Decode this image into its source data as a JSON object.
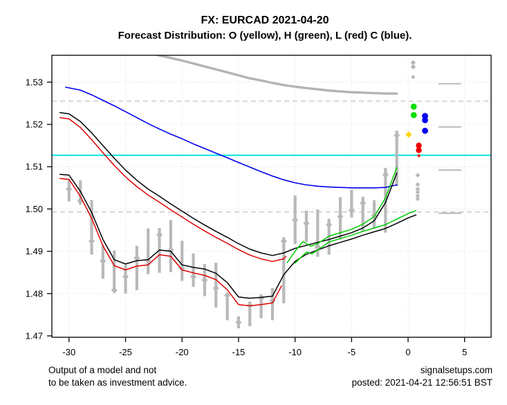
{
  "footer": {
    "disclaimer_line1": "Output of a model and not",
    "disclaimer_line2": "to be taken as investment advice.",
    "site": "signalsetups.com",
    "posted": "posted: 2021-04-21 12:56:51 BST"
  },
  "chart_data": {
    "type": "line",
    "title": "FX: EURCAD 2021-04-20",
    "subtitle": "Forecast Distribution: O (yellow), H (green), L (red) C (blue).",
    "xlabel": "",
    "ylabel": "",
    "xlim": [
      -31.5,
      7.3
    ],
    "ylim": [
      1.4697,
      1.5365
    ],
    "grid": true,
    "legend": {
      "O": "yellow",
      "H": "green",
      "L": "red",
      "C": "blue"
    },
    "x_ticks": [
      -30,
      -25,
      -20,
      -15,
      -10,
      -5,
      0,
      5
    ],
    "x_tick_labels": [
      "-30",
      "-25",
      "-20",
      "-15",
      "-10",
      "-5",
      "0",
      "5"
    ],
    "y_ticks": [
      1.47,
      1.48,
      1.49,
      1.5,
      1.51,
      1.52,
      1.53
    ],
    "y_tick_labels": [
      "1.47",
      "1.48",
      "1.49",
      "1.50",
      "1.51",
      "1.52",
      "1.53"
    ],
    "cyan_level": 1.5127,
    "dashed_levels": [
      1.5255,
      1.4993
    ],
    "right_segments": [
      {
        "x1": 2.7,
        "x2": 4.7,
        "y": 1.5296
      },
      {
        "x1": 2.7,
        "x2": 4.7,
        "y": 1.5194
      },
      {
        "x1": 2.7,
        "x2": 4.7,
        "y": 1.5092
      },
      {
        "x1": 2.7,
        "x2": 4.7,
        "y": 1.499
      }
    ],
    "candles": [
      [
        -30,
        1.5018,
        1.507,
        1.5047
      ],
      [
        -29,
        1.501,
        1.5068,
        1.5019
      ],
      [
        -28,
        1.4892,
        1.5021,
        1.4924
      ],
      [
        -27,
        1.4835,
        1.4915,
        1.4877
      ],
      [
        -26,
        1.4802,
        1.4902,
        1.4808
      ],
      [
        -25,
        1.48,
        1.4868,
        1.484
      ],
      [
        -24,
        1.4808,
        1.4913,
        1.4884
      ],
      [
        -23,
        1.4846,
        1.4954,
        1.4878
      ],
      [
        -22,
        1.4849,
        1.4955,
        1.4939
      ],
      [
        -21,
        1.4851,
        1.4974,
        1.4903
      ],
      [
        -20,
        1.483,
        1.4925,
        1.486
      ],
      [
        -19,
        1.4816,
        1.4895,
        1.484
      ],
      [
        -18,
        1.4794,
        1.487,
        1.4832
      ],
      [
        -17,
        1.4767,
        1.4873,
        1.4813
      ],
      [
        -16,
        1.4737,
        1.48,
        1.4796
      ],
      [
        -15,
        1.4718,
        1.4746,
        1.4732
      ],
      [
        -14,
        1.4723,
        1.4781,
        1.4772
      ],
      [
        -13,
        1.4742,
        1.4798,
        1.4789
      ],
      [
        -12,
        1.4737,
        1.4813,
        1.4783
      ],
      [
        -11,
        1.4777,
        1.4933,
        1.4924
      ],
      [
        -10,
        1.4917,
        1.5032,
        1.4974
      ],
      [
        -9,
        1.4922,
        1.4996,
        1.4966
      ],
      [
        -8,
        1.4887,
        1.4999,
        1.491
      ],
      [
        -7,
        1.4892,
        1.4977,
        1.4963
      ],
      [
        -6,
        1.4928,
        1.5028,
        1.4982
      ],
      [
        -5,
        1.498,
        1.5045,
        1.4997
      ],
      [
        -4,
        1.4947,
        1.5029,
        1.5014
      ],
      [
        -3,
        1.4955,
        1.5021,
        1.4985
      ],
      [
        -2,
        1.4944,
        1.5097,
        1.5081
      ],
      [
        -1,
        1.5054,
        1.5185,
        1.5174
      ]
    ],
    "series": [
      {
        "name": "gray-envelope",
        "color": "#b4b4b4",
        "width": 3.4,
        "points": [
          [
            -22.4,
            1.5366
          ],
          [
            -22,
            1.5363
          ],
          [
            -21,
            1.5357
          ],
          [
            -20,
            1.5351
          ],
          [
            -19,
            1.5344
          ],
          [
            -18,
            1.5337
          ],
          [
            -17,
            1.533
          ],
          [
            -16,
            1.5323
          ],
          [
            -15,
            1.5316
          ],
          [
            -14,
            1.5309
          ],
          [
            -13,
            1.5304
          ],
          [
            -12,
            1.5298
          ],
          [
            -11,
            1.5293
          ],
          [
            -10,
            1.5289
          ],
          [
            -9,
            1.5286
          ],
          [
            -8,
            1.5283
          ],
          [
            -7,
            1.528
          ],
          [
            -6,
            1.5278
          ],
          [
            -5,
            1.5276
          ],
          [
            -4,
            1.5275
          ],
          [
            -3,
            1.5274
          ],
          [
            -2,
            1.5273
          ],
          [
            -1,
            1.5273
          ]
        ]
      },
      {
        "name": "blue-forecast",
        "color": "#0000ee",
        "width": 1.6,
        "points": [
          [
            -30.3,
            1.5288
          ],
          [
            -29,
            1.5281
          ],
          [
            -28,
            1.527
          ],
          [
            -27,
            1.5257
          ],
          [
            -26,
            1.5244
          ],
          [
            -25,
            1.523
          ],
          [
            -24,
            1.5216
          ],
          [
            -23,
            1.5202
          ],
          [
            -22,
            1.5189
          ],
          [
            -21,
            1.5177
          ],
          [
            -20,
            1.5166
          ],
          [
            -19,
            1.5154
          ],
          [
            -18,
            1.5143
          ],
          [
            -17,
            1.5132
          ],
          [
            -16,
            1.5121
          ],
          [
            -15,
            1.511
          ],
          [
            -14,
            1.5099
          ],
          [
            -13,
            1.5088
          ],
          [
            -12,
            1.5078
          ],
          [
            -11,
            1.5069
          ],
          [
            -10,
            1.5062
          ],
          [
            -9,
            1.5057
          ],
          [
            -8,
            1.5054
          ],
          [
            -7,
            1.5052
          ],
          [
            -6,
            1.5051
          ],
          [
            -5,
            1.505
          ],
          [
            -4,
            1.505
          ],
          [
            -3,
            1.505
          ],
          [
            -2,
            1.5051
          ],
          [
            -1,
            1.5057
          ]
        ]
      },
      {
        "name": "red-upper",
        "color": "#e00000",
        "width": 1.5,
        "points": [
          [
            -30.8,
            1.5216
          ],
          [
            -30,
            1.5213
          ],
          [
            -29,
            1.5193
          ],
          [
            -28,
            1.5164
          ],
          [
            -27,
            1.5133
          ],
          [
            -26,
            1.5103
          ],
          [
            -25,
            1.5076
          ],
          [
            -24,
            1.5053
          ],
          [
            -23,
            1.5033
          ],
          [
            -22,
            1.5016
          ],
          [
            -21,
            1.4998
          ],
          [
            -20,
            1.4981
          ],
          [
            -19,
            1.4964
          ],
          [
            -18,
            1.4948
          ],
          [
            -17,
            1.4933
          ],
          [
            -16,
            1.4919
          ],
          [
            -15,
            1.4904
          ],
          [
            -14,
            1.4891
          ],
          [
            -13,
            1.4882
          ],
          [
            -12,
            1.4876
          ],
          [
            -11,
            1.4882
          ],
          [
            -10.8,
            1.4888
          ]
        ]
      },
      {
        "name": "red-lower",
        "color": "#e00000",
        "width": 1.5,
        "points": [
          [
            -30.8,
            1.5072
          ],
          [
            -30,
            1.507
          ],
          [
            -29,
            1.503
          ],
          [
            -28,
            1.4978
          ],
          [
            -27,
            1.4913
          ],
          [
            -26,
            1.4866
          ],
          [
            -25,
            1.4856
          ],
          [
            -24,
            1.4865
          ],
          [
            -23,
            1.4868
          ],
          [
            -22,
            1.4892
          ],
          [
            -21,
            1.4888
          ],
          [
            -20,
            1.4856
          ],
          [
            -19,
            1.4849
          ],
          [
            -18,
            1.4843
          ],
          [
            -17,
            1.4833
          ],
          [
            -16,
            1.4809
          ],
          [
            -15,
            1.4774
          ],
          [
            -14,
            1.4771
          ],
          [
            -13,
            1.4774
          ],
          [
            -12,
            1.4778
          ],
          [
            -11.2,
            1.4818
          ]
        ]
      },
      {
        "name": "black-upper",
        "color": "#000000",
        "width": 1.5,
        "points": [
          [
            -30.8,
            1.5228
          ],
          [
            -30,
            1.5225
          ],
          [
            -29,
            1.5207
          ],
          [
            -28,
            1.518
          ],
          [
            -27,
            1.515
          ],
          [
            -26,
            1.512
          ],
          [
            -25,
            1.5092
          ],
          [
            -24,
            1.5068
          ],
          [
            -23,
            1.5047
          ],
          [
            -22,
            1.503
          ],
          [
            -21,
            1.5012
          ],
          [
            -20,
            1.4995
          ],
          [
            -19,
            1.4978
          ],
          [
            -18,
            1.4962
          ],
          [
            -17,
            1.4947
          ],
          [
            -16,
            1.4933
          ],
          [
            -15,
            1.4918
          ],
          [
            -14,
            1.4905
          ],
          [
            -13,
            1.4896
          ],
          [
            -12,
            1.489
          ],
          [
            -11,
            1.4896
          ],
          [
            -10,
            1.4907
          ],
          [
            -9,
            1.4914
          ],
          [
            -8,
            1.4921
          ],
          [
            -7,
            1.4928
          ],
          [
            -6,
            1.4936
          ],
          [
            -5,
            1.4944
          ],
          [
            -4,
            1.4955
          ],
          [
            -3,
            1.4972
          ],
          [
            -2,
            1.5015
          ],
          [
            -1,
            1.5085
          ]
        ]
      },
      {
        "name": "black-lower",
        "color": "#000000",
        "width": 1.5,
        "points": [
          [
            -30.8,
            1.5082
          ],
          [
            -30,
            1.508
          ],
          [
            -29,
            1.5042
          ],
          [
            -28,
            1.4992
          ],
          [
            -27,
            1.4928
          ],
          [
            -26,
            1.488
          ],
          [
            -25,
            1.487
          ],
          [
            -24,
            1.4878
          ],
          [
            -23,
            1.488
          ],
          [
            -22,
            1.4903
          ],
          [
            -21,
            1.49
          ],
          [
            -20,
            1.4868
          ],
          [
            -19,
            1.4862
          ],
          [
            -18,
            1.4858
          ],
          [
            -17,
            1.4848
          ],
          [
            -16,
            1.4826
          ],
          [
            -15,
            1.4792
          ],
          [
            -14,
            1.4789
          ],
          [
            -13,
            1.4791
          ],
          [
            -12,
            1.4794
          ],
          [
            -11,
            1.4845
          ],
          [
            -10,
            1.4876
          ],
          [
            -9,
            1.4893
          ],
          [
            -8,
            1.4903
          ],
          [
            -7,
            1.4913
          ],
          [
            -6,
            1.4921
          ],
          [
            -5,
            1.4929
          ],
          [
            -4,
            1.4938
          ],
          [
            -3,
            1.4946
          ],
          [
            -2,
            1.4954
          ],
          [
            -1,
            1.4966
          ],
          [
            0,
            1.4979
          ],
          [
            0.7,
            1.4986
          ]
        ]
      },
      {
        "name": "green-upper",
        "color": "#00cc00",
        "width": 1.5,
        "points": [
          [
            -10.7,
            1.4873
          ],
          [
            -10,
            1.49
          ],
          [
            -9.3,
            1.4923
          ],
          [
            -8.6,
            1.4912
          ],
          [
            -8,
            1.4918
          ],
          [
            -7,
            1.4936
          ],
          [
            -6,
            1.4944
          ],
          [
            -5,
            1.4952
          ],
          [
            -4,
            1.4964
          ],
          [
            -3,
            1.4982
          ],
          [
            -2,
            1.5026
          ],
          [
            -1,
            1.5098
          ]
        ]
      },
      {
        "name": "green-lower",
        "color": "#00cc00",
        "width": 1.5,
        "points": [
          [
            -10,
            1.4872
          ],
          [
            -9,
            1.4898
          ],
          [
            -8.5,
            1.4894
          ],
          [
            -8,
            1.4903
          ],
          [
            -7,
            1.4922
          ],
          [
            -6,
            1.493
          ],
          [
            -5,
            1.4938
          ],
          [
            -4,
            1.4947
          ],
          [
            -3,
            1.4955
          ],
          [
            -2,
            1.4963
          ],
          [
            -1,
            1.4976
          ],
          [
            0,
            1.4989
          ],
          [
            0.7,
            1.4996
          ]
        ]
      }
    ],
    "forecast_dots": [
      {
        "x": 0.45,
        "y": 1.5346,
        "color": "#b9b9b9",
        "shape": "diamond",
        "r": 3.8
      },
      {
        "x": 0.45,
        "y": 1.5336,
        "color": "#b9b9b9",
        "shape": "diamond",
        "r": 3.8
      },
      {
        "x": 0.45,
        "y": 1.5312,
        "color": "#b9b9b9",
        "shape": "diamond",
        "r": 3.2
      },
      {
        "x": 0.5,
        "y": 1.5242,
        "color": "#00dd00",
        "shape": "circle",
        "r": 4.4
      },
      {
        "x": 0.5,
        "y": 1.5222,
        "color": "#00dd00",
        "shape": "circle",
        "r": 4.4
      },
      {
        "x": 1.5,
        "y": 1.522,
        "color": "#0000ee",
        "shape": "circle",
        "r": 4.4
      },
      {
        "x": 1.5,
        "y": 1.521,
        "color": "#0000ee",
        "shape": "circle",
        "r": 4.4
      },
      {
        "x": 1.5,
        "y": 1.5185,
        "color": "#0000ee",
        "shape": "circle",
        "r": 4.4
      },
      {
        "x": 0.05,
        "y": 1.5176,
        "color": "#ffd300",
        "shape": "diamond",
        "r": 4.6
      },
      {
        "x": 0.95,
        "y": 1.515,
        "color": "#ee0000",
        "shape": "circle",
        "r": 4.2
      },
      {
        "x": 0.95,
        "y": 1.5139,
        "color": "#ee0000",
        "shape": "circle",
        "r": 4.2
      },
      {
        "x": 0.95,
        "y": 1.5126,
        "color": "#ee0000",
        "shape": "diamond",
        "r": 2.6
      },
      {
        "x": 0.85,
        "y": 1.508,
        "color": "#b9b9b9",
        "shape": "diamond",
        "r": 3.4
      },
      {
        "x": 0.85,
        "y": 1.5058,
        "color": "#b9b9b9",
        "shape": "diamond",
        "r": 3.4
      },
      {
        "x": 0.85,
        "y": 1.5047,
        "color": "#b9b9b9",
        "shape": "diamond",
        "r": 3.4
      },
      {
        "x": 0.85,
        "y": 1.504,
        "color": "#b9b9b9",
        "shape": "diamond",
        "r": 3.4
      },
      {
        "x": 0.85,
        "y": 1.5031,
        "color": "#b9b9b9",
        "shape": "diamond",
        "r": 3.4
      },
      {
        "x": 0.85,
        "y": 1.5024,
        "color": "#b9b9b9",
        "shape": "diamond",
        "r": 3.4
      }
    ],
    "style": {
      "candle_color": "#b9b9b9",
      "grid_dotted_color": "#dcdcdc",
      "grid_dashed_color": "#c6c6c6",
      "right_segment_color": "#ababab",
      "cyan_color": "#00e5e5",
      "border_color": "#000000"
    }
  }
}
